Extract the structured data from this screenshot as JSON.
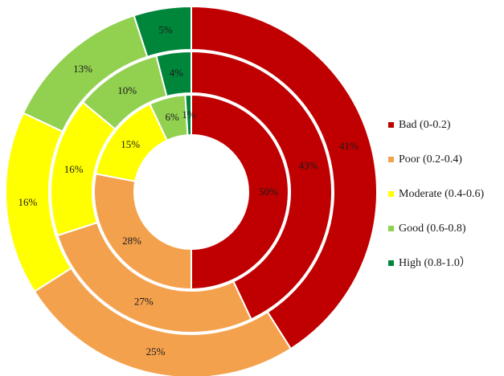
{
  "chart_data": {
    "type": "pie",
    "variant": "multi-ring donut",
    "title": "",
    "categories": [
      "Bad (0-0.2)",
      "Poor (0.2-0.4)",
      "Moderate (0.4-0.6)",
      "Good (0.6-0.8)",
      "High (0.8-1.0）"
    ],
    "colors": [
      "#c00000",
      "#f4a14d",
      "#ffff00",
      "#92d050",
      "#00863a"
    ],
    "series": [
      {
        "ring": "inner",
        "values": [
          50,
          28,
          15,
          6,
          1
        ],
        "labels": [
          "50%",
          "28%",
          "15%",
          "6%",
          "1%"
        ]
      },
      {
        "ring": "middle",
        "values": [
          43,
          27,
          16,
          10,
          4
        ],
        "labels": [
          "43%",
          "27%",
          "16%",
          "10%",
          "4%"
        ]
      },
      {
        "ring": "outer",
        "values": [
          41,
          25,
          16,
          13,
          5
        ],
        "labels": [
          "41%",
          "25%",
          "16%",
          "13%",
          "5%"
        ]
      }
    ],
    "legend": {
      "position": "right"
    }
  }
}
